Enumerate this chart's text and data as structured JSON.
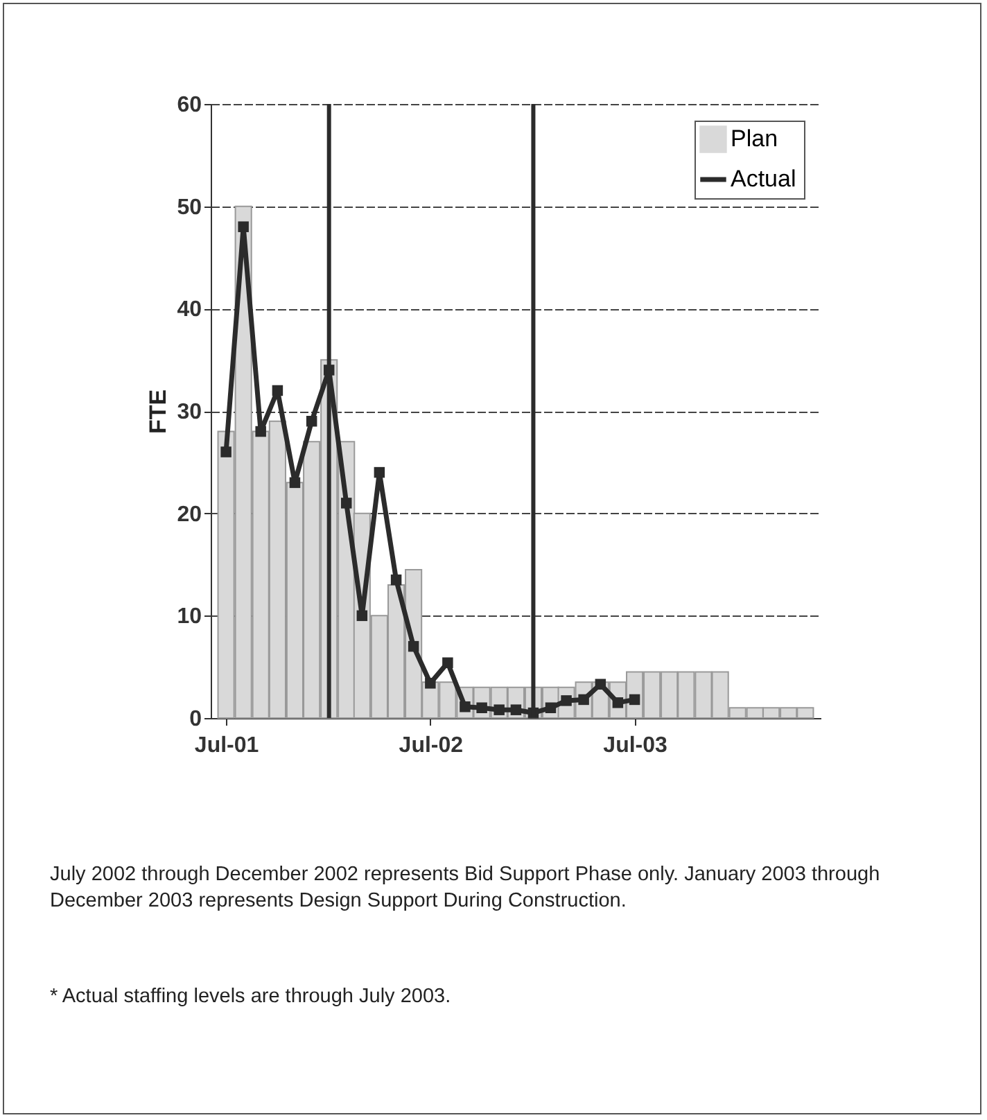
{
  "chart_data": {
    "type": "bar",
    "ylabel": "FTE",
    "x": [
      "2001-07",
      "2001-08",
      "2001-09",
      "2001-10",
      "2001-11",
      "2001-12",
      "2002-01",
      "2002-02",
      "2002-03",
      "2002-04",
      "2002-05",
      "2002-06",
      "2002-07",
      "2002-08",
      "2002-09",
      "2002-10",
      "2002-11",
      "2002-12",
      "2003-01",
      "2003-02",
      "2003-03",
      "2003-04",
      "2003-05",
      "2003-06",
      "2003-07",
      "2003-08",
      "2003-09",
      "2003-10",
      "2003-11",
      "2003-12",
      "2004-01",
      "2004-02",
      "2004-03",
      "2004-04",
      "2004-05"
    ],
    "series": [
      {
        "name": "Plan",
        "color": "#d9d9d9",
        "values": [
          28,
          50,
          28,
          29,
          23,
          27,
          35,
          27,
          20,
          10,
          13,
          14.5,
          3.5,
          3.5,
          3,
          3,
          3,
          3,
          3,
          3,
          3,
          3.5,
          3.5,
          3.5,
          4.5,
          4.5,
          4.5,
          4.5,
          4.5,
          4.5,
          1,
          1,
          1,
          1,
          1
        ]
      },
      {
        "name": "Actual",
        "type": "line",
        "color": "#2b2b2b",
        "values": [
          26,
          48,
          28,
          32,
          23,
          29,
          34,
          21,
          10,
          24,
          13.5,
          7,
          3.4,
          5.4,
          1.1,
          1,
          0.8,
          0.8,
          0.5,
          1,
          1.7,
          1.8,
          3.3,
          1.5,
          1.8,
          null,
          null,
          null,
          null,
          null,
          null,
          null,
          null,
          null,
          null
        ]
      }
    ],
    "xlim": [
      "2001-06-16",
      "2004-05-16"
    ],
    "xticks": [
      {
        "value": "2001-07",
        "label": "Jul-01"
      },
      {
        "value": "2002-07",
        "label": "Jul-02"
      },
      {
        "value": "2003-07",
        "label": "Jul-03"
      }
    ],
    "ylim": [
      0,
      60
    ],
    "yticks": [
      0,
      10,
      20,
      30,
      40,
      50,
      60
    ],
    "grid": "y",
    "legend": "top right",
    "marker": "square",
    "line_style": "solid",
    "ref_lines": [
      {
        "axis": "x",
        "value": "2002-01",
        "color": "#2b2b2b"
      },
      {
        "axis": "x",
        "value": "2003-01",
        "color": "#2b2b2b"
      }
    ],
    "annotations": [
      "July 2002 through December 2002 represents Bid Support Phase only.  January 2003 through December 2003 represents Design Support During Construction.",
      "* Actual staffing levels are through July 2003."
    ]
  }
}
